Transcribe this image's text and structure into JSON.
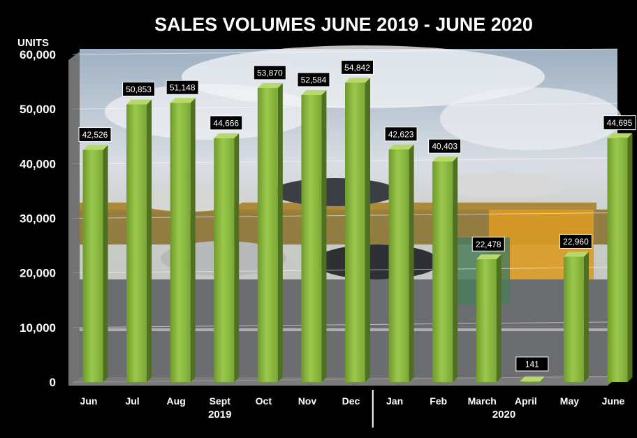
{
  "chart_data": {
    "type": "bar",
    "title": "SALES VOLUMES JUNE 2019 - JUNE 2020",
    "ylabel": "UNITS",
    "xlabel": "",
    "categories": [
      "Jun",
      "Jul",
      "Aug",
      "Sept",
      "Oct",
      "Nov",
      "Dec",
      "Jan",
      "Feb",
      "March",
      "April",
      "May",
      "June"
    ],
    "values": [
      42526,
      50853,
      51148,
      44666,
      53870,
      52584,
      54842,
      42623,
      40403,
      22478,
      141,
      22960,
      44695
    ],
    "data_labels": [
      "42,526",
      "50,853",
      "51,148",
      "44,666",
      "53,870",
      "52,584",
      "54,842",
      "42,623",
      "40,403",
      "22,478",
      "141",
      "22,960",
      "44,695"
    ],
    "yticks": [
      "0",
      "10,000",
      "20,000",
      "30,000",
      "40,000",
      "50,000",
      "60,000"
    ],
    "ylim": [
      0,
      60000
    ],
    "groups": [
      {
        "label": "2019",
        "from": 0,
        "to": 6
      },
      {
        "label": "2020",
        "from": 7,
        "to": 12
      }
    ],
    "bar_color": "#8bb83c",
    "grid": true,
    "legend": "none",
    "background": "photo of car transporter truck on highway"
  }
}
